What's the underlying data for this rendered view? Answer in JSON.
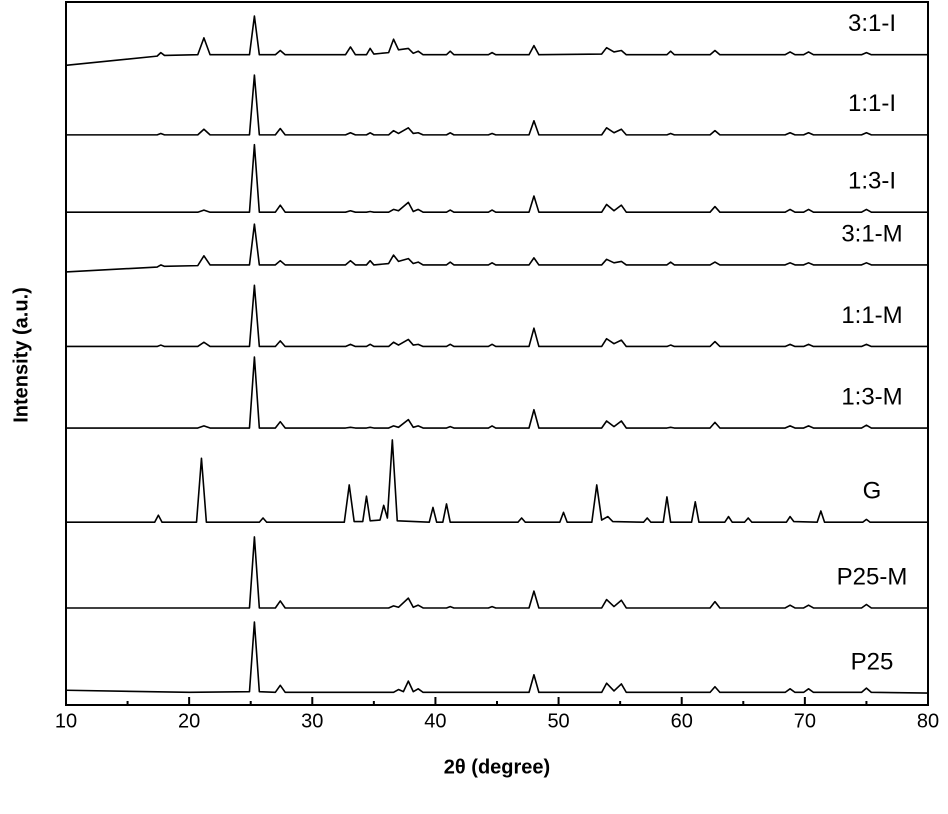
{
  "chart_data": {
    "type": "line",
    "xlabel": "2θ (degree)",
    "ylabel": "Intensity (a.u.)",
    "xlim": [
      10,
      80
    ],
    "xticks": [
      10,
      20,
      30,
      40,
      50,
      60,
      70,
      80
    ],
    "xminorticks": [
      15,
      25,
      35,
      45,
      55,
      65,
      75
    ],
    "ylim": [
      0,
      100
    ],
    "series": [
      {
        "name": "3:1-I",
        "color": "#000000",
        "x": [
          10,
          17.4,
          17.7,
          18.0,
          20.7,
          21.2,
          21.7,
          24.9,
          25.3,
          25.7,
          27.0,
          27.4,
          27.8,
          32.7,
          33.1,
          33.5,
          34.4,
          34.7,
          35.0,
          36.2,
          36.6,
          37.0,
          37.8,
          38.2,
          38.6,
          39.0,
          40.9,
          41.2,
          41.5,
          44.3,
          44.6,
          44.9,
          47.6,
          48.0,
          48.4,
          53.5,
          53.9,
          54.5,
          55.1,
          55.5,
          58.8,
          59.1,
          59.4,
          62.3,
          62.7,
          63.1,
          68.4,
          68.8,
          69.2,
          69.9,
          70.3,
          70.7,
          74.6,
          75.0,
          75.4,
          80
        ],
        "values": [
          91.0,
          92.3,
          92.8,
          92.4,
          92.5,
          94.9,
          92.5,
          92.5,
          98.0,
          92.5,
          92.5,
          93.1,
          92.5,
          92.5,
          93.6,
          92.5,
          92.5,
          93.4,
          92.6,
          92.8,
          94.7,
          93.2,
          93.4,
          92.7,
          93.0,
          92.5,
          92.5,
          93.0,
          92.5,
          92.5,
          92.8,
          92.5,
          92.5,
          93.8,
          92.5,
          92.6,
          93.5,
          92.9,
          93.1,
          92.5,
          92.5,
          93.0,
          92.5,
          92.5,
          93.1,
          92.5,
          92.5,
          92.9,
          92.5,
          92.5,
          92.9,
          92.5,
          92.5,
          92.8,
          92.5,
          92.5
        ]
      },
      {
        "name": "1:1-I",
        "color": "#000000",
        "x": [
          10,
          17.4,
          17.7,
          18.0,
          20.7,
          21.2,
          21.7,
          24.9,
          25.3,
          25.7,
          27.0,
          27.4,
          27.8,
          32.7,
          33.1,
          33.5,
          34.4,
          34.7,
          35.0,
          36.2,
          36.6,
          37.0,
          37.8,
          38.2,
          38.6,
          39.0,
          40.9,
          41.2,
          41.5,
          44.3,
          44.6,
          44.9,
          47.6,
          48.0,
          48.4,
          53.5,
          53.9,
          54.5,
          55.1,
          55.5,
          58.8,
          59.1,
          59.4,
          62.3,
          62.7,
          63.1,
          68.4,
          68.8,
          69.2,
          69.9,
          70.3,
          70.7,
          74.6,
          75.0,
          75.4,
          80
        ],
        "values": [
          81.1,
          81.1,
          81.3,
          81.1,
          81.1,
          81.9,
          81.1,
          81.1,
          89.6,
          81.1,
          81.1,
          82.0,
          81.1,
          81.1,
          81.4,
          81.1,
          81.1,
          81.4,
          81.1,
          81.1,
          81.7,
          81.3,
          82.1,
          81.3,
          81.4,
          81.1,
          81.1,
          81.4,
          81.1,
          81.1,
          81.3,
          81.1,
          81.1,
          83.1,
          81.1,
          81.1,
          82.1,
          81.4,
          81.9,
          81.1,
          81.1,
          81.3,
          81.1,
          81.1,
          81.7,
          81.1,
          81.1,
          81.4,
          81.1,
          81.1,
          81.4,
          81.1,
          81.1,
          81.4,
          81.1,
          81.1
        ]
      },
      {
        "name": "1:3-I",
        "color": "#000000",
        "x": [
          10,
          17.4,
          17.7,
          18.0,
          20.7,
          21.2,
          21.7,
          24.9,
          25.3,
          25.7,
          27.0,
          27.4,
          27.8,
          32.7,
          33.1,
          33.5,
          34.4,
          34.7,
          35.0,
          36.2,
          36.6,
          37.0,
          37.8,
          38.2,
          38.6,
          39.0,
          40.9,
          41.2,
          41.5,
          44.3,
          44.6,
          44.9,
          47.6,
          48.0,
          48.4,
          53.5,
          53.9,
          54.5,
          55.1,
          55.5,
          58.8,
          59.1,
          59.4,
          62.3,
          62.7,
          63.1,
          68.4,
          68.8,
          69.2,
          69.9,
          70.3,
          70.7,
          74.6,
          75.0,
          75.4,
          80
        ],
        "values": [
          70.1,
          70.1,
          70.1,
          70.1,
          70.1,
          70.4,
          70.1,
          70.1,
          79.7,
          70.1,
          70.1,
          71.1,
          70.1,
          70.1,
          70.3,
          70.1,
          70.1,
          70.2,
          70.1,
          70.1,
          70.5,
          70.3,
          71.5,
          70.2,
          70.5,
          70.1,
          70.1,
          70.4,
          70.1,
          70.1,
          70.4,
          70.1,
          70.1,
          72.4,
          70.1,
          70.1,
          71.2,
          70.3,
          71.1,
          70.1,
          70.1,
          70.1,
          70.1,
          70.1,
          70.9,
          70.1,
          70.1,
          70.5,
          70.1,
          70.1,
          70.5,
          70.1,
          70.1,
          70.5,
          70.1,
          70.1
        ]
      },
      {
        "name": "3:1-M",
        "color": "#000000",
        "x": [
          10,
          17.4,
          17.7,
          18.0,
          20.7,
          21.2,
          21.7,
          24.9,
          25.3,
          25.7,
          27.0,
          27.4,
          27.8,
          32.7,
          33.1,
          33.5,
          34.4,
          34.7,
          35.0,
          36.2,
          36.6,
          37.0,
          37.8,
          38.2,
          38.6,
          39.0,
          40.9,
          41.2,
          41.5,
          44.3,
          44.6,
          44.9,
          47.6,
          48.0,
          48.4,
          53.5,
          53.9,
          54.5,
          55.1,
          55.5,
          58.8,
          59.1,
          59.4,
          62.3,
          62.7,
          63.1,
          68.4,
          68.8,
          69.2,
          69.9,
          70.3,
          70.7,
          74.6,
          75.0,
          75.4,
          80
        ],
        "values": [
          61.6,
          62.3,
          62.6,
          62.4,
          62.5,
          63.9,
          62.6,
          62.6,
          68.4,
          62.6,
          62.6,
          63.2,
          62.6,
          62.6,
          63.2,
          62.6,
          62.6,
          63.2,
          62.6,
          62.8,
          64.0,
          63.1,
          63.5,
          62.8,
          63.0,
          62.6,
          62.6,
          63.0,
          62.6,
          62.6,
          62.9,
          62.6,
          62.6,
          63.6,
          62.6,
          62.6,
          63.4,
          62.9,
          63.1,
          62.6,
          62.6,
          63.0,
          62.6,
          62.6,
          63.0,
          62.6,
          62.6,
          62.9,
          62.6,
          62.6,
          62.9,
          62.6,
          62.6,
          62.9,
          62.6,
          62.6
        ]
      },
      {
        "name": "1:1-M",
        "color": "#000000",
        "x": [
          10,
          17.4,
          17.7,
          18.0,
          20.7,
          21.2,
          21.7,
          24.9,
          25.3,
          25.7,
          27.0,
          27.4,
          27.8,
          32.7,
          33.1,
          33.5,
          34.4,
          34.7,
          35.0,
          36.2,
          36.6,
          37.0,
          37.8,
          38.2,
          38.6,
          39.0,
          40.9,
          41.2,
          41.5,
          44.3,
          44.6,
          44.9,
          47.6,
          48.0,
          48.4,
          53.5,
          53.9,
          54.5,
          55.1,
          55.5,
          58.8,
          59.1,
          59.4,
          62.3,
          62.7,
          63.1,
          68.4,
          68.8,
          69.2,
          69.9,
          70.3,
          70.7,
          74.6,
          75.0,
          75.4,
          80
        ],
        "values": [
          51.0,
          51.0,
          51.2,
          51.0,
          51.0,
          51.6,
          51.0,
          51.0,
          59.7,
          51.0,
          51.0,
          51.8,
          51.0,
          51.0,
          51.3,
          51.0,
          51.0,
          51.3,
          51.0,
          51.0,
          51.6,
          51.2,
          52.0,
          51.2,
          51.3,
          51.0,
          51.0,
          51.3,
          51.0,
          51.0,
          51.3,
          51.0,
          51.0,
          53.6,
          51.0,
          51.0,
          52.1,
          51.4,
          51.9,
          51.0,
          51.0,
          51.2,
          51.0,
          51.0,
          51.7,
          51.0,
          51.0,
          51.3,
          51.0,
          51.0,
          51.3,
          51.0,
          51.0,
          51.3,
          51.0,
          51.0
        ]
      },
      {
        "name": "1:3-M",
        "color": "#000000",
        "x": [
          10,
          17.4,
          17.7,
          18.0,
          20.7,
          21.2,
          21.7,
          24.9,
          25.3,
          25.7,
          27.0,
          27.4,
          27.8,
          32.7,
          33.1,
          33.5,
          34.4,
          34.7,
          35.0,
          36.2,
          36.6,
          37.0,
          37.8,
          38.2,
          38.6,
          39.0,
          40.9,
          41.2,
          41.5,
          44.3,
          44.6,
          44.9,
          47.6,
          48.0,
          48.4,
          53.5,
          53.9,
          54.5,
          55.1,
          55.5,
          58.8,
          59.1,
          59.4,
          62.3,
          62.7,
          63.1,
          68.4,
          68.8,
          69.2,
          69.9,
          70.3,
          70.7,
          74.6,
          75.0,
          75.4,
          80
        ],
        "values": [
          39.4,
          39.4,
          39.4,
          39.4,
          39.4,
          39.7,
          39.4,
          39.4,
          49.5,
          39.4,
          39.4,
          40.3,
          39.4,
          39.4,
          39.5,
          39.4,
          39.4,
          39.5,
          39.4,
          39.4,
          39.7,
          39.5,
          40.6,
          39.5,
          39.7,
          39.4,
          39.4,
          39.6,
          39.4,
          39.4,
          39.7,
          39.4,
          39.4,
          42.0,
          39.4,
          39.4,
          40.4,
          39.6,
          40.4,
          39.4,
          39.4,
          39.5,
          39.4,
          39.4,
          40.2,
          39.4,
          39.4,
          39.7,
          39.4,
          39.4,
          39.7,
          39.4,
          39.4,
          39.8,
          39.4,
          39.4
        ]
      },
      {
        "name": "G",
        "color": "#000000",
        "x": [
          10,
          17.2,
          17.5,
          17.8,
          20.6,
          21.0,
          21.4,
          25.7,
          26.0,
          26.3,
          32.6,
          33.0,
          33.4,
          34.1,
          34.4,
          34.7,
          35.5,
          35.8,
          36.1,
          36.5,
          36.9,
          39.5,
          39.8,
          40.1,
          40.6,
          40.9,
          41.2,
          46.7,
          47.0,
          47.3,
          50.1,
          50.4,
          50.7,
          52.7,
          53.1,
          53.5,
          54.0,
          54.4,
          56.9,
          57.2,
          57.5,
          58.5,
          58.8,
          59.1,
          60.8,
          61.1,
          61.4,
          63.5,
          63.8,
          64.1,
          65.1,
          65.4,
          65.7,
          68.5,
          68.8,
          69.1,
          71.0,
          71.3,
          71.6,
          74.7,
          75.0,
          75.3,
          80
        ],
        "values": [
          26.0,
          26.0,
          27.0,
          26.0,
          26.0,
          35.1,
          26.0,
          26.0,
          26.6,
          26.0,
          26.0,
          31.3,
          26.1,
          26.1,
          29.7,
          26.2,
          26.3,
          28.4,
          26.6,
          37.7,
          26.2,
          26.0,
          28.1,
          26.0,
          26.0,
          28.6,
          26.0,
          26.0,
          26.6,
          26.0,
          26.0,
          27.4,
          26.0,
          26.0,
          31.3,
          26.3,
          26.8,
          26.1,
          26.0,
          26.6,
          26.0,
          26.0,
          29.6,
          26.0,
          26.0,
          28.9,
          26.0,
          26.0,
          26.8,
          26.0,
          26.0,
          26.6,
          26.0,
          26.0,
          26.8,
          26.1,
          26.0,
          27.6,
          26.0,
          26.0,
          26.4,
          26.0,
          26.0
        ]
      },
      {
        "name": "P25-M",
        "color": "#000000",
        "x": [
          10,
          17.4,
          17.7,
          18.0,
          20.7,
          21.2,
          21.7,
          24.9,
          25.3,
          25.7,
          27.0,
          27.4,
          27.8,
          32.7,
          33.1,
          33.5,
          34.4,
          34.7,
          35.0,
          36.2,
          36.6,
          37.0,
          37.8,
          38.2,
          38.6,
          39.0,
          40.9,
          41.2,
          41.5,
          44.3,
          44.6,
          44.9,
          47.6,
          48.0,
          48.4,
          53.5,
          53.9,
          54.5,
          55.1,
          55.5,
          58.8,
          59.1,
          59.4,
          62.3,
          62.7,
          63.1,
          68.4,
          68.8,
          69.2,
          69.9,
          70.3,
          70.7,
          74.6,
          75.0,
          75.4,
          80
        ],
        "values": [
          13.8,
          13.8,
          13.8,
          13.8,
          13.8,
          13.8,
          13.8,
          13.8,
          23.9,
          13.8,
          13.8,
          14.8,
          13.8,
          13.8,
          13.8,
          13.8,
          13.8,
          13.8,
          13.8,
          13.8,
          14.1,
          13.9,
          15.2,
          13.9,
          14.2,
          13.8,
          13.8,
          14.0,
          13.8,
          13.8,
          14.0,
          13.8,
          13.8,
          16.2,
          13.8,
          13.8,
          15.0,
          14.0,
          14.9,
          13.8,
          13.8,
          13.8,
          13.8,
          13.8,
          14.7,
          13.8,
          13.8,
          14.2,
          13.8,
          13.8,
          14.2,
          13.8,
          13.8,
          14.3,
          13.8,
          13.8
        ]
      },
      {
        "name": "P25",
        "color": "#000000",
        "x": [
          10,
          20,
          24.9,
          25.3,
          25.7,
          27.0,
          27.4,
          27.8,
          36.6,
          37.0,
          37.4,
          37.8,
          38.2,
          38.6,
          39.0,
          47.6,
          48.0,
          48.4,
          53.5,
          53.9,
          54.5,
          55.1,
          55.5,
          62.3,
          62.7,
          63.1,
          68.4,
          68.8,
          69.2,
          69.9,
          70.3,
          70.7,
          74.6,
          75.0,
          75.4,
          80
        ],
        "values": [
          2.1,
          1.8,
          1.9,
          11.8,
          1.9,
          1.8,
          2.8,
          1.8,
          1.8,
          2.2,
          1.9,
          3.4,
          1.9,
          2.3,
          1.8,
          1.8,
          4.3,
          1.8,
          1.8,
          3.1,
          2.0,
          3.0,
          1.8,
          1.8,
          2.6,
          1.8,
          1.8,
          2.3,
          1.8,
          1.8,
          2.3,
          1.8,
          1.8,
          2.4,
          1.8,
          1.7
        ]
      }
    ]
  }
}
